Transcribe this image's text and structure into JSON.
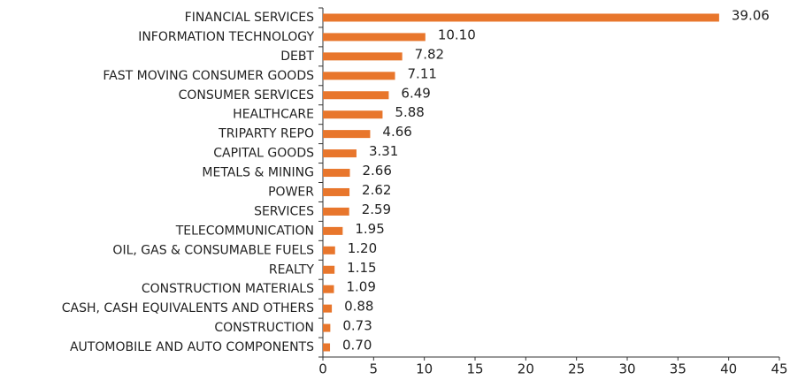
{
  "chart_data": {
    "type": "barh",
    "categories": [
      "FINANCIAL SERVICES",
      "INFORMATION TECHNOLOGY",
      "DEBT",
      "FAST MOVING CONSUMER GOODS",
      "CONSUMER SERVICES",
      "HEALTHCARE",
      "TRIPARTY REPO",
      "CAPITAL GOODS",
      "METALS & MINING",
      "POWER",
      "SERVICES",
      "TELECOMMUNICATION",
      "OIL, GAS & CONSUMABLE FUELS",
      "REALTY",
      "CONSTRUCTION MATERIALS",
      "CASH, CASH EQUIVALENTS AND OTHERS",
      "CONSTRUCTION",
      "AUTOMOBILE AND AUTO COMPONENTS"
    ],
    "values": [
      39.06,
      10.1,
      7.82,
      7.11,
      6.49,
      5.88,
      4.66,
      3.31,
      2.66,
      2.62,
      2.59,
      1.95,
      1.2,
      1.15,
      1.09,
      0.88,
      0.73,
      0.7
    ],
    "value_labels": [
      "39.06",
      "10.10",
      "7.82",
      "7.11",
      "6.49",
      "5.88",
      "4.66",
      "3.31",
      "2.66",
      "2.62",
      "2.59",
      "1.95",
      "1.20",
      "1.15",
      "1.09",
      "0.88",
      "0.73",
      "0.70"
    ],
    "color": "#e8762c",
    "xlim": [
      0,
      45
    ],
    "xticks": [
      0,
      5,
      10,
      15,
      20,
      25,
      30,
      35,
      40,
      45
    ]
  }
}
